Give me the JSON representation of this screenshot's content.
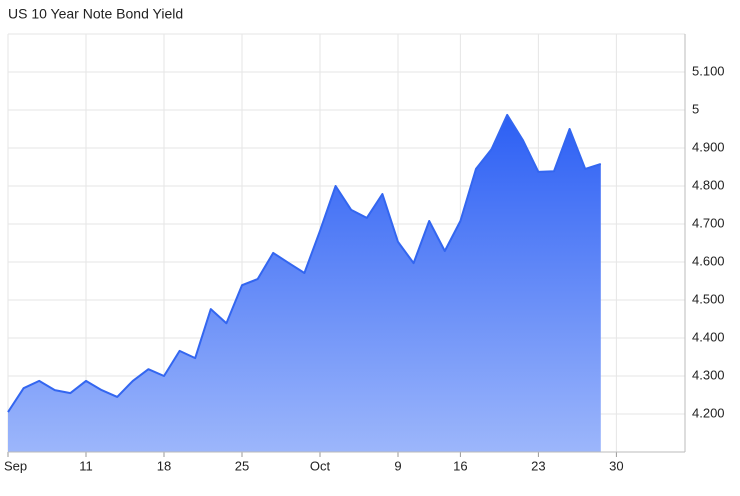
{
  "chart_data": {
    "type": "area",
    "title": "US 10 Year Note Bond Yield",
    "categories": [
      "Sep",
      null,
      null,
      null,
      null,
      "11",
      null,
      null,
      null,
      null,
      "18",
      null,
      null,
      null,
      null,
      "25",
      null,
      null,
      null,
      null,
      "Oct",
      null,
      null,
      null,
      null,
      "9",
      null,
      null,
      null,
      "16",
      null,
      null,
      null,
      null,
      "23",
      null,
      null,
      null,
      null,
      "30",
      null,
      null,
      null,
      null
    ],
    "series": [
      {
        "name": "US 10 Year Note Bond Yield",
        "color": "#3366f0",
        "values": [
          4.205,
          4.268,
          4.287,
          4.263,
          4.255,
          4.287,
          4.263,
          4.245,
          4.287,
          4.318,
          4.3,
          4.366,
          4.347,
          4.476,
          4.439,
          4.539,
          4.555,
          4.624,
          4.597,
          4.571,
          4.682,
          4.8,
          4.737,
          4.716,
          4.779,
          4.653,
          4.597,
          4.708,
          4.629,
          4.708,
          4.845,
          4.897,
          4.987,
          4.921,
          4.837,
          4.839,
          4.95,
          4.845,
          4.858,
          null,
          null,
          null,
          null,
          null
        ]
      }
    ],
    "ylim": [
      4.1,
      5.2
    ],
    "yticks": [
      {
        "value": 4.2,
        "label": "4.200"
      },
      {
        "value": 4.3,
        "label": "4.300"
      },
      {
        "value": 4.4,
        "label": "4.400"
      },
      {
        "value": 4.5,
        "label": "4.500"
      },
      {
        "value": 4.6,
        "label": "4.600"
      },
      {
        "value": 4.7,
        "label": "4.700"
      },
      {
        "value": 4.8,
        "label": "4.800"
      },
      {
        "value": 4.9,
        "label": "4.900"
      },
      5,
      {
        "value": 5.1,
        "label": "5.100"
      }
    ],
    "y_axis_side": "right",
    "grid": true
  }
}
